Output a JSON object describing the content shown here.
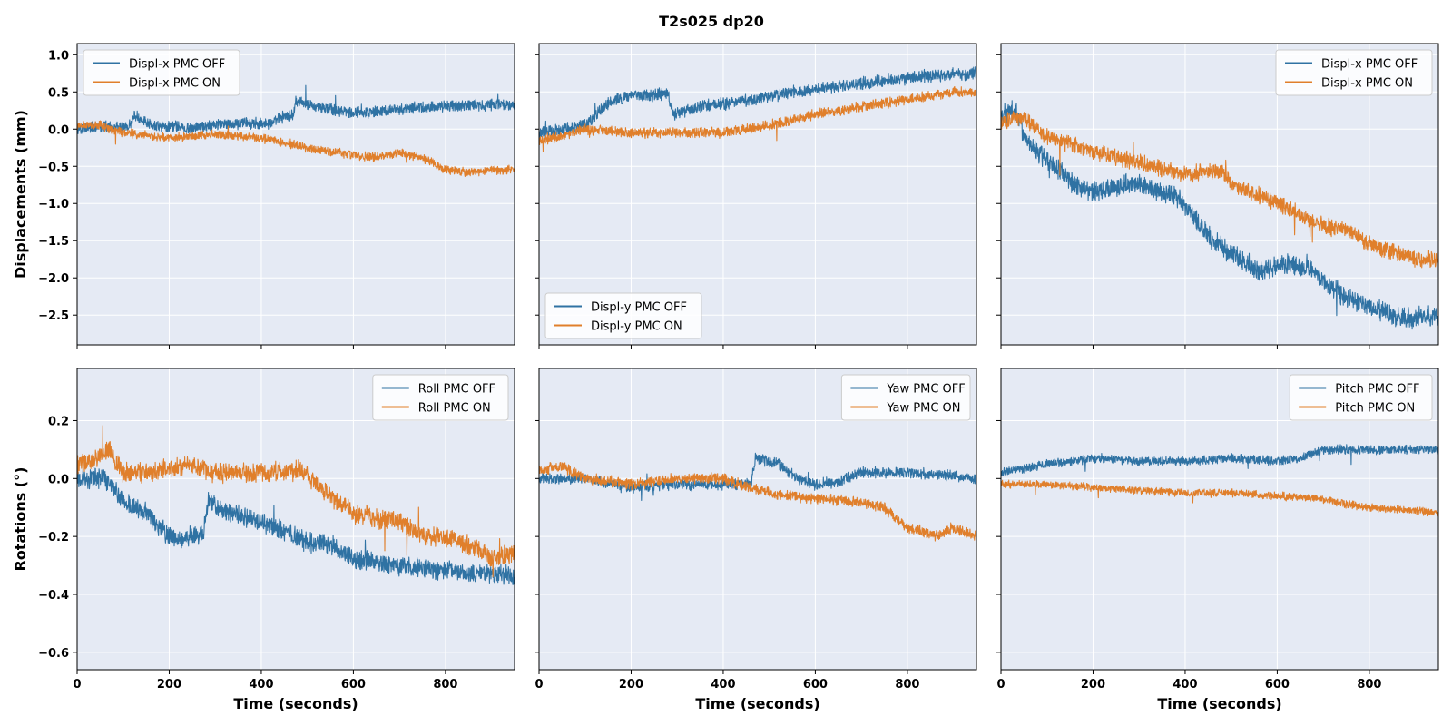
{
  "figure": {
    "title": "T2s025  dp20",
    "colors": {
      "off": "#2f72a3",
      "on": "#e07f2b",
      "background": "#e5eaf4",
      "grid": "#ffffff"
    }
  },
  "chart_data": [
    {
      "type": "line",
      "panel": "top-left",
      "ylabel": "Displacements (mm)",
      "xlabel": "",
      "xlim": [
        0,
        950
      ],
      "ylim": [
        -2.9,
        1.15
      ],
      "xticks": [
        0,
        200,
        400,
        600,
        800
      ],
      "yticks": [
        1.0,
        0.5,
        0.0,
        -0.5,
        -1.0,
        -1.5,
        -2.0,
        -2.5
      ],
      "show_x_ticklabels": false,
      "show_y_ticklabels": true,
      "legend": "top-left",
      "series": [
        {
          "name": "Displ-x PMC OFF",
          "color": "#2f72a3",
          "noise": 0.09,
          "x": [
            0,
            60,
            110,
            125,
            160,
            250,
            300,
            380,
            420,
            440,
            470,
            475,
            520,
            560,
            620,
            700,
            780,
            850,
            900,
            950
          ],
          "y": [
            0.0,
            0.03,
            0.02,
            0.18,
            0.05,
            0.02,
            0.06,
            0.08,
            0.08,
            0.15,
            0.2,
            0.38,
            0.3,
            0.25,
            0.22,
            0.27,
            0.3,
            0.32,
            0.32,
            0.32
          ]
        },
        {
          "name": "Displ-x PMC ON",
          "color": "#e07f2b",
          "noise": 0.07,
          "x": [
            0,
            50,
            100,
            200,
            300,
            400,
            500,
            600,
            650,
            700,
            750,
            800,
            850,
            900,
            950
          ],
          "y": [
            0.05,
            0.05,
            -0.05,
            -0.12,
            -0.07,
            -0.12,
            -0.25,
            -0.35,
            -0.38,
            -0.32,
            -0.38,
            -0.55,
            -0.58,
            -0.55,
            -0.55
          ]
        }
      ]
    },
    {
      "type": "line",
      "panel": "top-middle",
      "ylabel": "",
      "xlabel": "",
      "xlim": [
        0,
        950
      ],
      "ylim": [
        -2.9,
        1.15
      ],
      "xticks": [
        0,
        200,
        400,
        600,
        800
      ],
      "yticks": [
        1.0,
        0.5,
        0.0,
        -0.5,
        -1.0,
        -1.5,
        -2.0,
        -2.5
      ],
      "show_x_ticklabels": false,
      "show_y_ticklabels": false,
      "legend": "bottom-left",
      "series": [
        {
          "name": "Displ-y PMC OFF",
          "color": "#2f72a3",
          "noise": 0.1,
          "x": [
            0,
            50,
            100,
            150,
            200,
            250,
            280,
            290,
            350,
            450,
            550,
            650,
            750,
            850,
            950
          ],
          "y": [
            -0.05,
            -0.02,
            0.05,
            0.35,
            0.45,
            0.45,
            0.48,
            0.2,
            0.3,
            0.38,
            0.5,
            0.58,
            0.65,
            0.72,
            0.75
          ]
        },
        {
          "name": "Displ-y PMC ON",
          "color": "#e07f2b",
          "noise": 0.08,
          "x": [
            0,
            50,
            100,
            200,
            300,
            400,
            500,
            600,
            700,
            800,
            900,
            950
          ],
          "y": [
            -0.15,
            -0.1,
            0.0,
            -0.05,
            -0.05,
            -0.05,
            0.05,
            0.2,
            0.3,
            0.4,
            0.5,
            0.5
          ]
        }
      ]
    },
    {
      "type": "line",
      "panel": "top-right",
      "ylabel": "",
      "xlabel": "",
      "xlim": [
        0,
        950
      ],
      "ylim": [
        -2.9,
        1.15
      ],
      "xticks": [
        0,
        200,
        400,
        600,
        800
      ],
      "yticks": [
        1.0,
        0.5,
        0.0,
        -0.5,
        -1.0,
        -1.5,
        -2.0,
        -2.5
      ],
      "show_x_ticklabels": false,
      "show_y_ticklabels": false,
      "legend": "top-right",
      "series": [
        {
          "name": "Displ-x PMC OFF",
          "color": "#2f72a3",
          "noise": 0.16,
          "x": [
            0,
            30,
            60,
            100,
            150,
            200,
            260,
            300,
            380,
            420,
            460,
            520,
            560,
            620,
            680,
            720,
            800,
            880,
            950
          ],
          "y": [
            0.2,
            0.25,
            -0.2,
            -0.4,
            -0.7,
            -0.85,
            -0.75,
            -0.75,
            -0.9,
            -1.2,
            -1.5,
            -1.75,
            -1.9,
            -1.8,
            -1.9,
            -2.15,
            -2.4,
            -2.55,
            -2.5
          ]
        },
        {
          "name": "Displ-x PMC ON",
          "color": "#e07f2b",
          "noise": 0.13,
          "x": [
            0,
            50,
            100,
            200,
            300,
            400,
            480,
            500,
            550,
            600,
            650,
            700,
            750,
            800,
            850,
            900,
            950
          ],
          "y": [
            0.1,
            0.15,
            -0.1,
            -0.3,
            -0.45,
            -0.6,
            -0.55,
            -0.75,
            -0.85,
            -1.0,
            -1.15,
            -1.3,
            -1.35,
            -1.55,
            -1.65,
            -1.75,
            -1.75
          ]
        }
      ]
    },
    {
      "type": "line",
      "panel": "bottom-left",
      "ylabel": "Rotations (°)",
      "xlabel": "Time (seconds)",
      "xlim": [
        0,
        950
      ],
      "ylim": [
        -0.66,
        0.38
      ],
      "xticks": [
        0,
        200,
        400,
        600,
        800
      ],
      "yticks": [
        0.2,
        0.0,
        -0.2,
        -0.4,
        -0.6
      ],
      "show_x_ticklabels": true,
      "show_y_ticklabels": true,
      "legend": "top-right",
      "series": [
        {
          "name": "Roll PMC OFF",
          "color": "#2f72a3",
          "noise": 0.04,
          "x": [
            0,
            60,
            100,
            150,
            200,
            260,
            275,
            285,
            300,
            400,
            500,
            550,
            600,
            700,
            800,
            900,
            950
          ],
          "y": [
            0.0,
            0.0,
            -0.08,
            -0.12,
            -0.2,
            -0.2,
            -0.17,
            -0.07,
            -0.1,
            -0.15,
            -0.22,
            -0.23,
            -0.28,
            -0.3,
            -0.32,
            -0.33,
            -0.34
          ]
        },
        {
          "name": "Roll PMC ON",
          "color": "#e07f2b",
          "noise": 0.04,
          "x": [
            0,
            40,
            70,
            100,
            150,
            250,
            300,
            400,
            480,
            520,
            560,
            600,
            700,
            750,
            800,
            850,
            900,
            950
          ],
          "y": [
            0.05,
            0.07,
            0.1,
            0.02,
            0.02,
            0.05,
            0.02,
            0.02,
            0.03,
            -0.02,
            -0.07,
            -0.12,
            -0.15,
            -0.2,
            -0.2,
            -0.23,
            -0.27,
            -0.26
          ]
        }
      ]
    },
    {
      "type": "line",
      "panel": "bottom-middle",
      "ylabel": "",
      "xlabel": "Time (seconds)",
      "xlim": [
        0,
        950
      ],
      "ylim": [
        -0.66,
        0.38
      ],
      "xticks": [
        0,
        200,
        400,
        600,
        800
      ],
      "yticks": [
        0.2,
        0.0,
        -0.2,
        -0.4,
        -0.6
      ],
      "show_x_ticklabels": true,
      "show_y_ticklabels": false,
      "legend": "top-right",
      "series": [
        {
          "name": "Yaw PMC OFF",
          "color": "#2f72a3",
          "noise": 0.022,
          "x": [
            0,
            100,
            200,
            300,
            400,
            460,
            470,
            520,
            560,
            600,
            650,
            700,
            800,
            900,
            950
          ],
          "y": [
            0.0,
            0.0,
            -0.03,
            -0.02,
            -0.02,
            -0.02,
            0.07,
            0.05,
            0.0,
            -0.02,
            -0.01,
            0.02,
            0.02,
            0.01,
            0.0
          ]
        },
        {
          "name": "Yaw PMC ON",
          "color": "#e07f2b",
          "noise": 0.022,
          "x": [
            0,
            50,
            100,
            200,
            300,
            400,
            500,
            600,
            700,
            750,
            800,
            830,
            860,
            900,
            950
          ],
          "y": [
            0.03,
            0.04,
            0.0,
            -0.02,
            0.0,
            0.0,
            -0.05,
            -0.07,
            -0.08,
            -0.1,
            -0.17,
            -0.18,
            -0.2,
            -0.17,
            -0.2
          ]
        }
      ]
    },
    {
      "type": "line",
      "panel": "bottom-right",
      "ylabel": "",
      "xlabel": "Time (seconds)",
      "xlim": [
        0,
        950
      ],
      "ylim": [
        -0.66,
        0.38
      ],
      "xticks": [
        0,
        200,
        400,
        600,
        800
      ],
      "yticks": [
        0.2,
        0.0,
        -0.2,
        -0.4,
        -0.6
      ],
      "show_x_ticklabels": true,
      "show_y_ticklabels": false,
      "legend": "top-right",
      "series": [
        {
          "name": "Pitch PMC OFF",
          "color": "#2f72a3",
          "noise": 0.018,
          "x": [
            0,
            100,
            200,
            300,
            400,
            500,
            600,
            650,
            700,
            800,
            950
          ],
          "y": [
            0.02,
            0.05,
            0.07,
            0.06,
            0.06,
            0.07,
            0.06,
            0.07,
            0.1,
            0.1,
            0.1
          ]
        },
        {
          "name": "Pitch PMC ON",
          "color": "#e07f2b",
          "noise": 0.016,
          "x": [
            0,
            100,
            200,
            300,
            400,
            500,
            600,
            700,
            750,
            800,
            900,
            950
          ],
          "y": [
            -0.02,
            -0.02,
            -0.03,
            -0.04,
            -0.05,
            -0.05,
            -0.06,
            -0.07,
            -0.09,
            -0.1,
            -0.11,
            -0.12
          ]
        }
      ]
    }
  ]
}
